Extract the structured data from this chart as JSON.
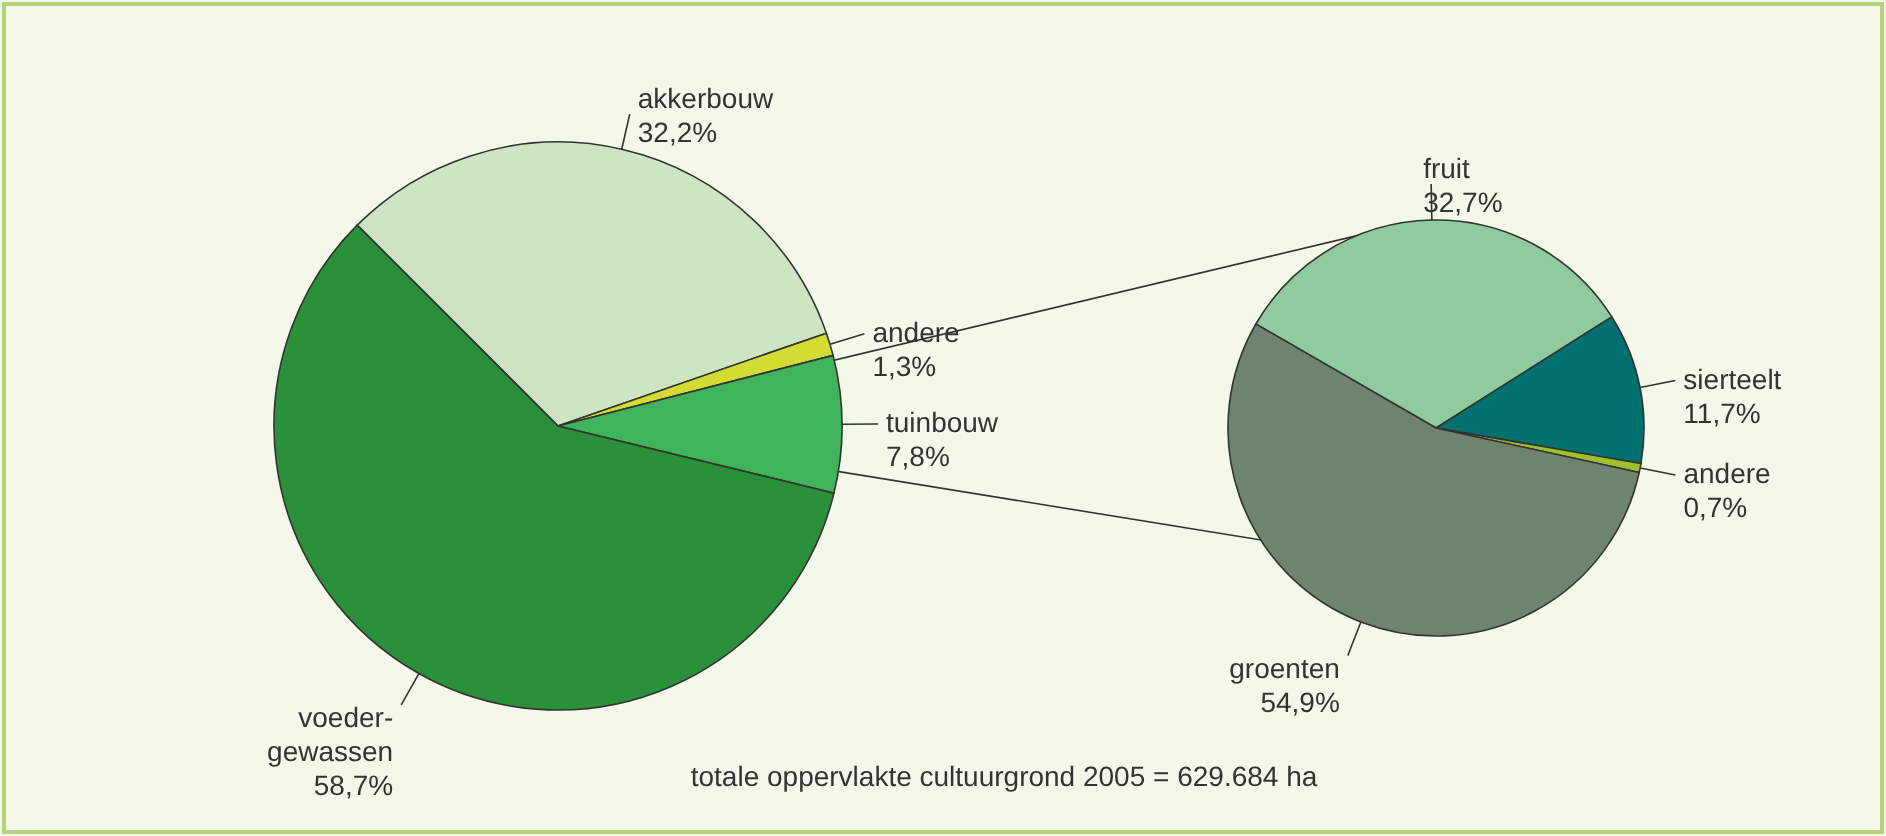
{
  "chart_data": [
    {
      "type": "pie",
      "categories": [
        "akkerbouw",
        "andere",
        "tuinbouw",
        "voeder-gewassen"
      ],
      "values": [
        32.2,
        1.3,
        7.8,
        58.7
      ],
      "value_labels": [
        "32,2%",
        "1,3%",
        "7,8%",
        "58,7%"
      ],
      "colors": [
        "#cde5c3",
        "#d3dc33",
        "#3fb45c",
        "#2a9039"
      ],
      "annotations": [
        "totale oppervlakte cultuurgrond 2005 = 629.684 ha"
      ]
    },
    {
      "type": "pie",
      "categories": [
        "fruit",
        "sierteelt",
        "andere",
        "groenten"
      ],
      "values": [
        32.7,
        11.7,
        0.7,
        54.9
      ],
      "value_labels": [
        "32,7%",
        "11,7%",
        "0,7%",
        "54,9%"
      ],
      "colors": [
        "#8fcb9f",
        "#00716e",
        "#a0bf2c",
        "#6e8470"
      ]
    }
  ]
}
